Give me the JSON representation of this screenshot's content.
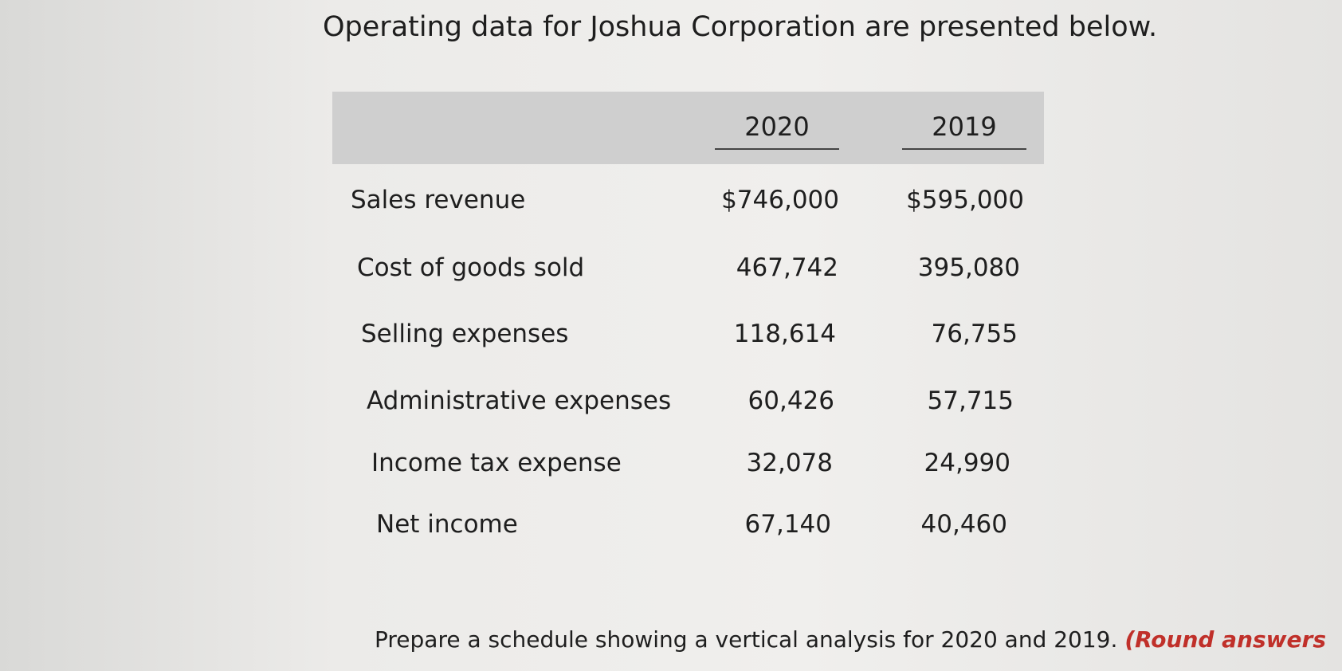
{
  "intro": "Operating data for Joshua Corporation are presented below.",
  "table": {
    "columns": [
      "2020",
      "2019"
    ],
    "rows": [
      [
        "Sales revenue",
        "$746,000",
        "$595,000"
      ],
      [
        "Cost of goods sold",
        "467,742",
        "395,080"
      ],
      [
        "Selling expenses",
        "118,614",
        "76,755"
      ],
      [
        "Administrative expenses",
        "60,426",
        "57,715"
      ],
      [
        "Income tax expense",
        "32,078",
        "24,990"
      ],
      [
        "Net income",
        "67,140",
        "40,460"
      ]
    ]
  },
  "instruction": {
    "text": "Prepare a schedule showing a vertical analysis for 2020 and 2019.",
    "note": "(Round answers"
  }
}
